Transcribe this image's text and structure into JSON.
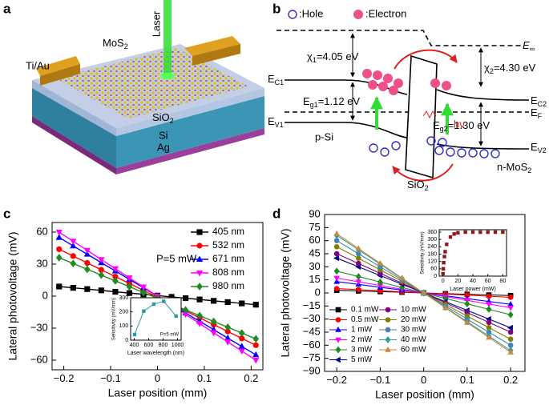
{
  "panel_labels": [
    "a",
    "b",
    "c",
    "d"
  ],
  "diagram_a": {
    "laser": "Laser",
    "mos2": {
      "main": "MoS",
      "sub": "2"
    },
    "electrode": "Ti/Au",
    "sio2": {
      "main": "SiO",
      "sub": "2"
    },
    "si": "Si",
    "ag": "Ag"
  },
  "diagram_b": {
    "hole_legend": ":Hole",
    "electron_legend": ":Electron",
    "e_vac": {
      "main": "E",
      "sub": "∞"
    },
    "chi1": {
      "main": "χ",
      "sub": "1",
      "rest": "=4.05 eV"
    },
    "chi2": {
      "main": "χ",
      "sub": "2",
      "rest": "=4.30 eV"
    },
    "ec1": {
      "main": "E",
      "sub": "C1"
    },
    "ec2": {
      "main": "E",
      "sub": "C2"
    },
    "eg1": {
      "main": "E",
      "sub": "g1",
      "rest": "=1.12 eV"
    },
    "eg2": {
      "main": "E",
      "sub": "g2",
      "rest": "=1.30 eV"
    },
    "ef": {
      "main": "E",
      "sub": "F"
    },
    "ev1": {
      "main": "E",
      "sub": "V1"
    },
    "ev2": {
      "main": "E",
      "sub": "V2"
    },
    "psi": "p-Si",
    "nmos2": {
      "main": "n-MoS",
      "sub": "2"
    },
    "sio2": {
      "main": "SiO",
      "sub": "2"
    },
    "hv": "hν"
  },
  "chart_data": [
    {
      "type": "line",
      "xlabel": "Laser position (mm)",
      "ylabel": "Lateral photovoltage (mV)",
      "annotation": "P=5 mW",
      "legend": "upper right",
      "xlim": [
        -0.225,
        0.225
      ],
      "ylim": [
        -69,
        69
      ],
      "xticks": [
        {
          "value": -0.2,
          "label": "−0.2"
        },
        {
          "value": -0.1,
          "label": "−0.1"
        },
        0,
        0.1,
        0.2
      ],
      "yticks": [
        {
          "value": -60,
          "label": "−60"
        },
        {
          "value": -30,
          "label": "−30"
        },
        0,
        30,
        60
      ],
      "x": [
        -0.21,
        -0.18,
        -0.15,
        -0.12,
        -0.09,
        -0.06,
        -0.03,
        0,
        0.03,
        0.06,
        0.09,
        0.12,
        0.15,
        0.18,
        0.21
      ],
      "series": [
        {
          "name": "405 nm",
          "color": "#000000",
          "marker": "square",
          "values": [
            9,
            7.8,
            6.6,
            5.4,
            4.1,
            2.9,
            1.7,
            0.5,
            -0.7,
            -1.9,
            -3.1,
            -4.4,
            -5.6,
            -6.8,
            -8
          ]
        },
        {
          "name": "532 nm",
          "color": "#ff0000",
          "marker": "circle",
          "values": [
            44,
            37.6,
            31.1,
            24.7,
            18.3,
            11.9,
            5.4,
            -1,
            -7.4,
            -13.9,
            -20.3,
            -26.7,
            -33.1,
            -39.6,
            -46
          ]
        },
        {
          "name": "671 nm",
          "color": "#0000ff",
          "marker": "triangle",
          "values": [
            55,
            47.1,
            39.3,
            31.4,
            23.6,
            15.7,
            7.9,
            0,
            -7.9,
            -15.7,
            -23.6,
            -31.4,
            -39.3,
            -47.1,
            -55
          ]
        },
        {
          "name": "808 nm",
          "color": "#ff00ff",
          "marker": "triangle_down",
          "values": [
            60,
            51.4,
            42.9,
            34.3,
            25.7,
            17.1,
            8.6,
            0,
            -8.6,
            -17.1,
            -25.7,
            -34.3,
            -42.9,
            -51.4,
            -60
          ]
        },
        {
          "name": "980 nm",
          "color": "#1f8a1f",
          "marker": "diamond",
          "values": [
            36,
            30.6,
            25.1,
            19.7,
            14.3,
            8.9,
            3.4,
            -2,
            -7.4,
            -12.9,
            -18.3,
            -23.7,
            -29.1,
            -34.6,
            -40
          ]
        }
      ]
    },
    {
      "type": "line",
      "xlabel": "Laser wavelength (nm)",
      "ylabel": "Sensitivity (mV/mm)",
      "annotation": "P=5 mW",
      "xlim": [
        350,
        1050
      ],
      "ylim": [
        0,
        300
      ],
      "xticks": [
        400,
        600,
        800,
        1000
      ],
      "yticks": [
        0,
        100,
        200,
        300
      ],
      "x": [
        405,
        532,
        671,
        808,
        980
      ],
      "series": [
        {
          "color": "#2f9a9a",
          "marker": "square",
          "values": [
            40,
            205,
            255,
            275,
            170
          ]
        }
      ]
    },
    {
      "type": "line",
      "xlabel": "Laser position (mm)",
      "ylabel": "Lateral photovoltage (mV)",
      "legend": "lower left",
      "xlim": [
        -0.228,
        0.233
      ],
      "ylim": [
        -90,
        90
      ],
      "xticks": [
        {
          "value": -0.2,
          "label": "−0.2"
        },
        {
          "value": -0.1,
          "label": "−0.1"
        },
        0,
        0.1,
        0.2
      ],
      "yticks": [
        {
          "value": -90,
          "label": "−90"
        },
        {
          "value": -75,
          "label": "−75"
        },
        {
          "value": -60,
          "label": "−60"
        },
        {
          "value": -45,
          "label": "−45"
        },
        {
          "value": -30,
          "label": "−30"
        },
        {
          "value": -15,
          "label": "−15"
        },
        0,
        15,
        30,
        45,
        60,
        75,
        90
      ],
      "x": [
        -0.2,
        -0.15,
        -0.1,
        -0.05,
        0,
        0.05,
        0.1,
        0.15,
        0.2
      ],
      "series": [
        {
          "name": "0.1 mW",
          "color": "#000000",
          "marker": "square",
          "values": [
            3,
            2.3,
            1.5,
            0.8,
            0,
            -0.8,
            -1.5,
            -2.3,
            -3
          ]
        },
        {
          "name": "0.5 mW",
          "color": "#ff0000",
          "marker": "circle",
          "values": [
            5,
            3.8,
            2.5,
            1.3,
            0,
            -1.3,
            -2.5,
            -3.8,
            -5
          ]
        },
        {
          "name": "1 mW",
          "color": "#0000ff",
          "marker": "triangle",
          "values": [
            13,
            9.8,
            6.5,
            3.3,
            0,
            -3.3,
            -6.5,
            -9.8,
            -13
          ]
        },
        {
          "name": "2 mW",
          "color": "#ff00ff",
          "marker": "triangle_down",
          "values": [
            17,
            12.8,
            8.5,
            4.3,
            0,
            -4.3,
            -8.5,
            -12.8,
            -17
          ]
        },
        {
          "name": "3 mW",
          "color": "#1f8a1f",
          "marker": "diamond",
          "values": [
            25,
            18.8,
            12.5,
            6.3,
            0,
            -6.3,
            -12.5,
            -18.8,
            -25
          ]
        },
        {
          "name": "5 mW",
          "color": "#00008b",
          "marker": "triangle_left",
          "values": [
            40,
            30,
            20,
            10,
            0,
            -10,
            -20,
            -30,
            -40
          ]
        },
        {
          "name": "10 mW",
          "color": "#800080",
          "marker": "circle",
          "values": [
            45,
            33.8,
            22.5,
            11.3,
            0,
            -11.3,
            -22.5,
            -33.8,
            -45
          ]
        },
        {
          "name": "20 mW",
          "color": "#808000",
          "marker": "circle",
          "values": [
            53,
            39.8,
            26.5,
            13.3,
            0,
            -13.3,
            -26.5,
            -39.8,
            -53
          ]
        },
        {
          "name": "30 mW",
          "color": "#4682b4",
          "marker": "circle",
          "values": [
            60,
            45,
            30,
            15,
            0,
            -15,
            -30,
            -45,
            -60
          ]
        },
        {
          "name": "40 mW",
          "color": "#2aa198",
          "marker": "diamond",
          "values": [
            66,
            49.5,
            33,
            16.5,
            0,
            -16.5,
            -33,
            -49.5,
            -66
          ]
        },
        {
          "name": "60 mW",
          "color": "#cd853f",
          "marker": "triangle",
          "values": [
            68,
            51,
            34,
            17,
            0,
            -17,
            -34,
            -51,
            -68
          ]
        }
      ]
    },
    {
      "type": "scatter",
      "xlabel": "Laser power (mW)",
      "ylabel": "Sensitivity (mV/mm)",
      "xlim": [
        -5,
        85
      ],
      "ylim": [
        0,
        380
      ],
      "xticks": [
        0,
        20,
        40,
        60,
        80
      ],
      "yticks": [
        0,
        60,
        120,
        180,
        240,
        300,
        360
      ],
      "x": [
        0.1,
        0.5,
        1,
        2,
        3,
        5,
        10,
        15,
        20,
        30,
        40,
        50,
        60,
        70,
        80
      ],
      "series": [
        {
          "color": "#8b1a1a",
          "marker": "square",
          "values": [
            20,
            60,
            110,
            160,
            200,
            260,
            320,
            345,
            355,
            360,
            360,
            360,
            360,
            360,
            360
          ]
        }
      ]
    }
  ]
}
